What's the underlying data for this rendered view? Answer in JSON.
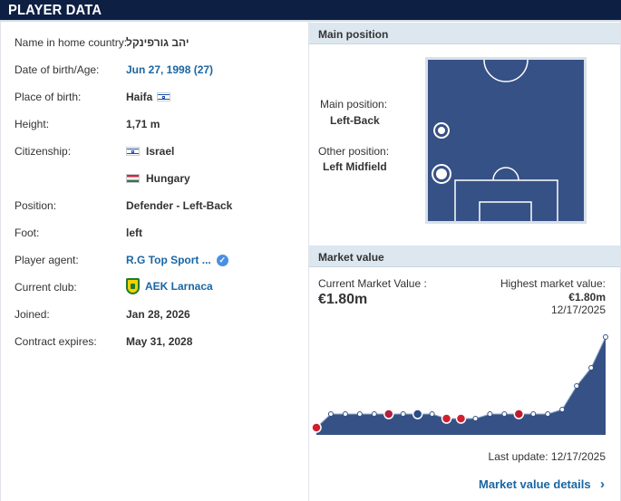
{
  "header": {
    "title": "PLAYER DATA"
  },
  "player_info": [
    {
      "label": "Name in home country:",
      "value": "יהב גורפינקל"
    },
    {
      "label": "Date of birth/Age:",
      "value": "Jun 27, 1998 (27)"
    },
    {
      "label": "Place of birth:",
      "value": "Haifa"
    },
    {
      "label": "Height:",
      "value": "1,71 m"
    },
    {
      "label": "Citizenship:",
      "value": "Israel"
    },
    {
      "label": "",
      "value": "Hungary"
    },
    {
      "label": "Position:",
      "value": "Defender - Left-Back"
    },
    {
      "label": "Foot:",
      "value": "left"
    },
    {
      "label": "Player agent:",
      "value": "R.G Top Sport ..."
    },
    {
      "label": "Current club:",
      "value": "AEK Larnaca"
    },
    {
      "label": "Joined:",
      "value": "Jan 28, 2026"
    },
    {
      "label": "Contract expires:",
      "value": "May 31, 2028"
    }
  ],
  "main_position": {
    "heading": "Main position",
    "main_label": "Main position:",
    "main_value": "Left-Back",
    "other_label": "Other position:",
    "other_value": "Left Midfield"
  },
  "market_value": {
    "heading": "Market value",
    "current_label": "Current Market Value :",
    "current_value": "€1.80m",
    "highest_label": "Highest market value:",
    "highest_value": "€1.80m",
    "highest_date": "12/17/2025",
    "last_update": "Last update: 12/17/2025",
    "details_link": "Market value details",
    "chevron": "chevron-right-icon",
    "chart_fill_color": "#365185",
    "chart_point_color": "#365185",
    "chart_points": [
      0.0,
      0.15,
      0.15,
      0.15,
      0.15,
      0.15,
      0.15,
      0.15,
      0.15,
      0.1,
      0.1,
      0.1,
      0.15,
      0.15,
      0.15,
      0.15,
      0.15,
      0.2,
      0.46,
      0.66,
      1.0
    ]
  },
  "colors": {
    "header_bg": "#0e1f44",
    "link": "#1a66a3",
    "panel_head_bg": "#dce7f0",
    "pitch": "#365185"
  }
}
